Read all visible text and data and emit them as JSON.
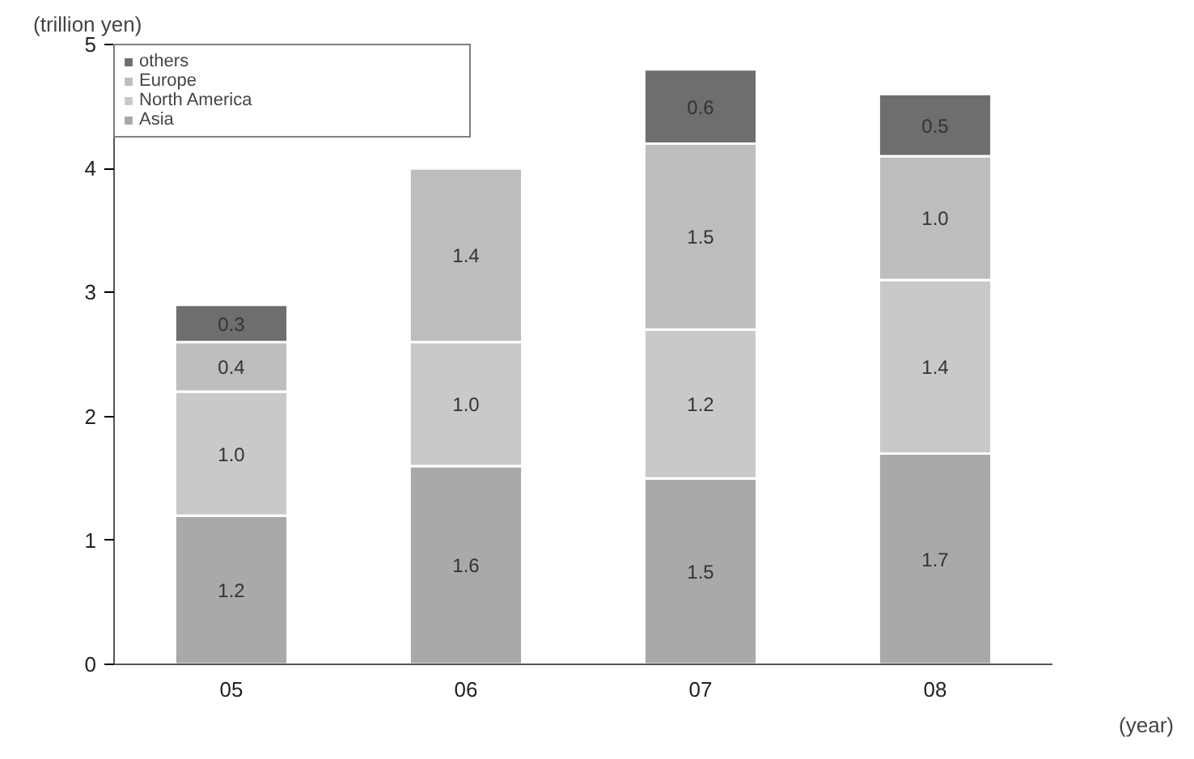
{
  "chart_data": {
    "type": "bar",
    "stacked": true,
    "ylabel": "(trillion yen)",
    "xlabel": "(year)",
    "categories": [
      "05",
      "06",
      "07",
      "08"
    ],
    "series": [
      {
        "name": "Asia",
        "color": "#a9a9a9",
        "values": [
          1.2,
          1.6,
          1.5,
          1.7
        ],
        "value_labels": [
          "1.2",
          "1.6",
          "1.5",
          "1.7"
        ]
      },
      {
        "name": "North America",
        "color": "#c9c9c9",
        "values": [
          1.0,
          1.0,
          1.2,
          1.4
        ],
        "value_labels": [
          "1.0",
          "1.0",
          "1.2",
          "1.4"
        ]
      },
      {
        "name": "Europe",
        "color": "#bdbdbd",
        "values": [
          0.4,
          1.4,
          1.5,
          1.0
        ],
        "value_labels": [
          "0.4",
          "1.4",
          "1.5",
          "1.0"
        ]
      },
      {
        "name": "others",
        "color": "#6e6e6e",
        "values": [
          0.3,
          null,
          0.6,
          0.5
        ],
        "value_labels": [
          "0.3",
          null,
          "0.6",
          "0.5"
        ]
      }
    ],
    "ylim": [
      0,
      5
    ],
    "yticks": [
      0,
      1,
      2,
      3,
      4,
      5
    ],
    "legend": "top left",
    "grid": false
  }
}
